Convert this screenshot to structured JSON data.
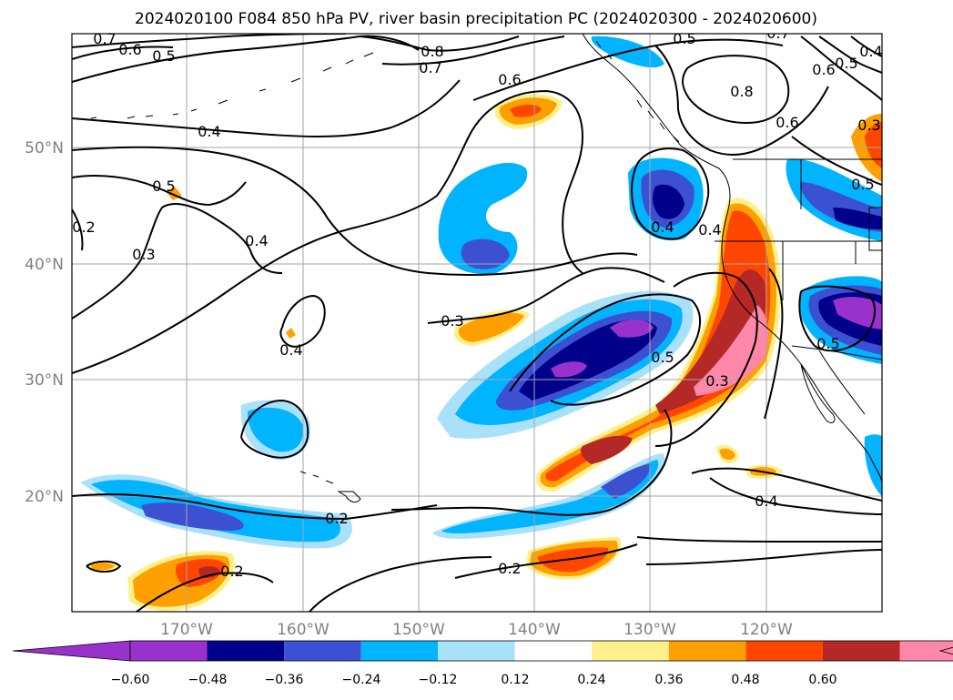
{
  "title": "2024020100 F084 850 hPa PV, river basin precipitation PC (2024020300 - 2024020600)",
  "map": {
    "lon_labels": [
      "170°W",
      "160°W",
      "150°W",
      "140°W",
      "130°W",
      "120°W"
    ],
    "lat_labels": [
      "50°N",
      "40°N",
      "30°N",
      "20°N"
    ],
    "lon_values": [
      -170,
      -160,
      -150,
      -140,
      -130,
      -120
    ],
    "lat_values": [
      50,
      40,
      30,
      20
    ],
    "extent": {
      "lon": [
        -180,
        -110
      ],
      "lat": [
        10,
        60
      ]
    },
    "contour_labels": [
      "0.7",
      "0.6",
      "0.5",
      "0.8",
      "0.7",
      "0.6",
      "0.5",
      "0.7",
      "0.5",
      "0.4",
      "0.6",
      "0.5",
      "0.8",
      "0.6",
      "0.4",
      "0.5",
      "0.2",
      "0.4",
      "0.3",
      "0.4",
      "0.5",
      "0.4",
      "0.3",
      "0.4",
      "0.5",
      "0.3",
      "0.3",
      "0.4",
      "0.2",
      "0.2",
      "0.2"
    ],
    "colors": {
      "grid": "#a6a6a6",
      "contour": "#000000",
      "tick_text": "#808080"
    }
  },
  "colorbar": {
    "tick_labels": [
      "−0.60",
      "−0.48",
      "−0.36",
      "−0.24",
      "−0.12",
      "0.12",
      "0.24",
      "0.36",
      "0.48",
      "0.60"
    ],
    "bins": [
      {
        "color": "#9932cc"
      },
      {
        "color": "#9932cc"
      },
      {
        "color": "#00008b"
      },
      {
        "color": "#3c50d2"
      },
      {
        "color": "#00b4ff"
      },
      {
        "color": "#aae1fa"
      },
      {
        "color": "#ffffff"
      },
      {
        "color": "#fff08c"
      },
      {
        "color": "#ffa000"
      },
      {
        "color": "#ff4600"
      },
      {
        "color": "#b42828"
      },
      {
        "color": "#ff87aa"
      },
      {
        "color": "#ff87aa"
      }
    ]
  }
}
